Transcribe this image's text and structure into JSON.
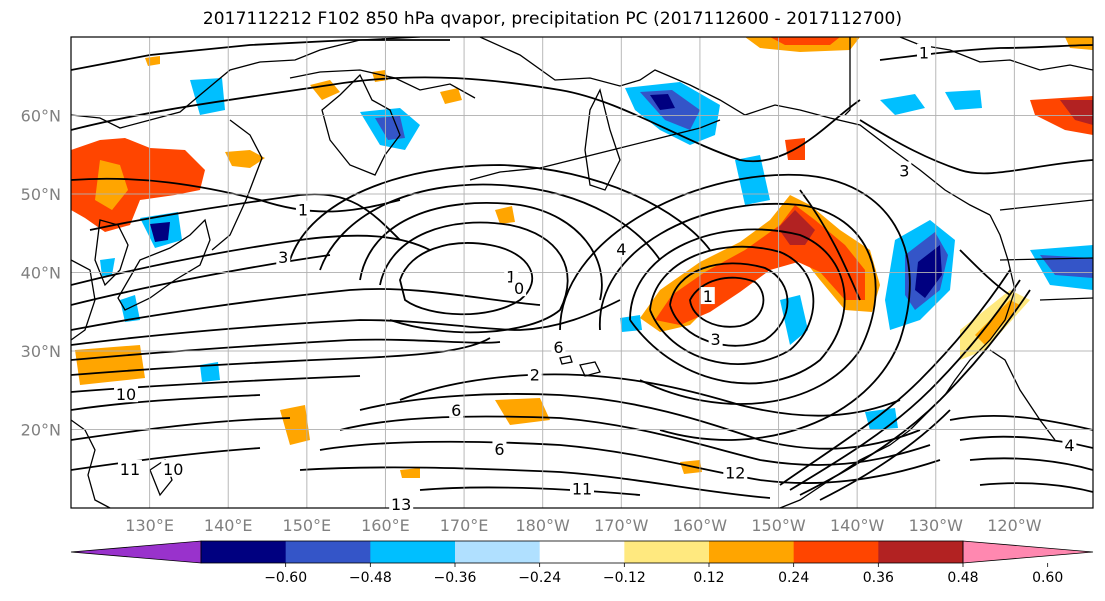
{
  "title": "2017112212 F102 850 hPa qvapor, precipitation PC (2017112600 - 2017112700)",
  "map": {
    "projection": "PlateCarree",
    "extent": {
      "lon_min": 120,
      "lon_max": 250,
      "lat_min": 10,
      "lat_max": 70
    },
    "lat_ticks": [
      {
        "value": 20,
        "label": "20°N"
      },
      {
        "value": 30,
        "label": "30°N"
      },
      {
        "value": 40,
        "label": "40°N"
      },
      {
        "value": 50,
        "label": "50°N"
      },
      {
        "value": 60,
        "label": "60°N"
      }
    ],
    "lon_ticks": [
      {
        "value": 130,
        "label": "130°E"
      },
      {
        "value": 140,
        "label": "140°E"
      },
      {
        "value": 150,
        "label": "150°E"
      },
      {
        "value": 160,
        "label": "160°E"
      },
      {
        "value": 170,
        "label": "170°E"
      },
      {
        "value": 180,
        "label": "180°W"
      },
      {
        "value": 190,
        "label": "170°W"
      },
      {
        "value": 200,
        "label": "160°W"
      },
      {
        "value": 210,
        "label": "150°W"
      },
      {
        "value": 220,
        "label": "140°W"
      },
      {
        "value": 230,
        "label": "130°W"
      },
      {
        "value": 240,
        "label": "120°W"
      }
    ],
    "gridlines": true,
    "contour_labels": [
      {
        "text": "1",
        "lon": 176,
        "lat": 39.5
      },
      {
        "text": "0",
        "lon": 177,
        "lat": 38
      },
      {
        "text": "3",
        "lon": 147,
        "lat": 42
      },
      {
        "text": "1",
        "lon": 149.5,
        "lat": 48
      },
      {
        "text": "4",
        "lon": 190,
        "lat": 43
      },
      {
        "text": "1",
        "lon": 201,
        "lat": 37
      },
      {
        "text": "3",
        "lon": 202,
        "lat": 31.5
      },
      {
        "text": "6",
        "lon": 182,
        "lat": 30.5
      },
      {
        "text": "2",
        "lon": 179,
        "lat": 27
      },
      {
        "text": "6",
        "lon": 169,
        "lat": 22.5
      },
      {
        "text": "6",
        "lon": 174.5,
        "lat": 17.5
      },
      {
        "text": "10",
        "lon": 127,
        "lat": 24.5
      },
      {
        "text": "11",
        "lon": 127.5,
        "lat": 15
      },
      {
        "text": "10",
        "lon": 133,
        "lat": 15
      },
      {
        "text": "11",
        "lon": 185,
        "lat": 12.5
      },
      {
        "text": "12",
        "lon": 204.5,
        "lat": 14.5
      },
      {
        "text": "13",
        "lon": 162,
        "lat": 10.5
      },
      {
        "text": "1",
        "lon": 228.5,
        "lat": 68
      },
      {
        "text": "3",
        "lon": 226,
        "lat": 53
      },
      {
        "text": "4",
        "lon": 247,
        "lat": 18
      }
    ]
  },
  "colorbar": {
    "colors": [
      "#9932cc",
      "#000080",
      "#3455c8",
      "#00bfff",
      "#b0e0ff",
      "#ffffff",
      "#ffe97f",
      "#ffa500",
      "#ff4500",
      "#b22222",
      "#ff88b0"
    ],
    "ticks": [
      {
        "value": -0.6,
        "label": "−0.60"
      },
      {
        "value": -0.48,
        "label": "−0.48"
      },
      {
        "value": -0.36,
        "label": "−0.36"
      },
      {
        "value": -0.24,
        "label": "−0.24"
      },
      {
        "value": -0.12,
        "label": "−0.12"
      },
      {
        "value": 0.12,
        "label": "0.12"
      },
      {
        "value": 0.24,
        "label": "0.24"
      },
      {
        "value": 0.36,
        "label": "0.36"
      },
      {
        "value": 0.48,
        "label": "0.48"
      },
      {
        "value": 0.6,
        "label": "0.60"
      }
    ],
    "extend": "both"
  }
}
